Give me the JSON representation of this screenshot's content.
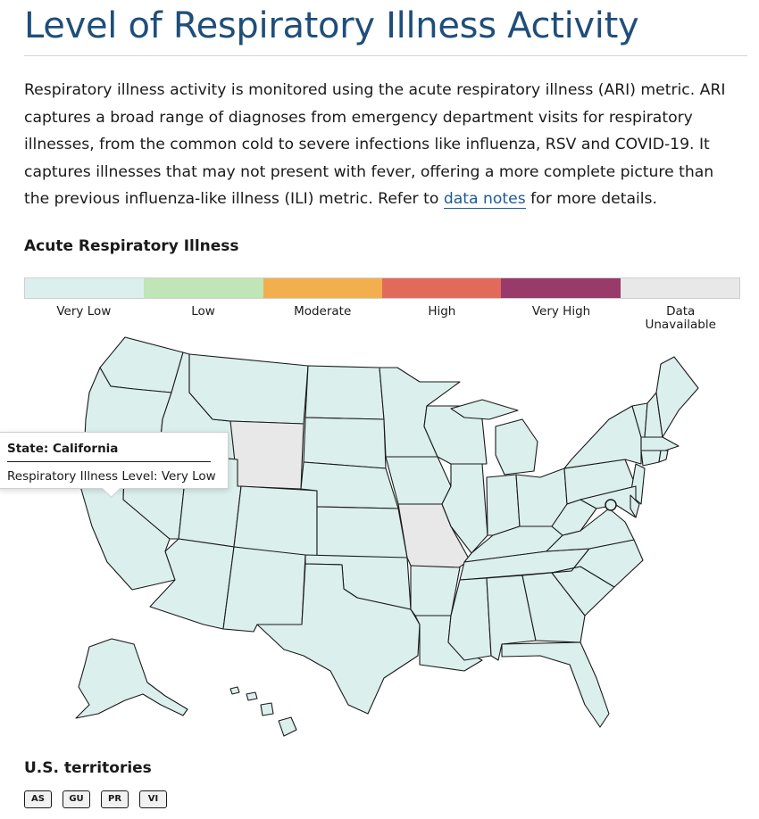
{
  "page": {
    "title": "Level of Respiratory Illness Activity",
    "intro_before_link": "Respiratory illness activity is monitored using the acute respiratory illness (ARI) metric. ARI captures a broad range of diagnoses from emergency department visits for respiratory illnesses, from the common cold to severe infections like influenza, RSV and COVID-19. It captures illnesses that may not present with fever, offering a more complete picture than the previous influenza-like illness (ILI) metric. Refer to ",
    "intro_link": "data notes",
    "intro_after_link": " for more details."
  },
  "map": {
    "section_title": "Acute Respiratory Illness",
    "legend": [
      {
        "label": "Very Low",
        "color": "#dbefec"
      },
      {
        "label": "Low",
        "color": "#c0e5b6"
      },
      {
        "label": "Moderate",
        "color": "#f1b04d"
      },
      {
        "label": "High",
        "color": "#e26a5b"
      },
      {
        "label": "Very High",
        "color": "#983a6a"
      },
      {
        "label": "Data\nUnavailable",
        "color": "#e8e8e8"
      }
    ],
    "unavailable_states": [
      "Wyoming",
      "Missouri"
    ],
    "tooltip": {
      "title": "State: California",
      "level": "Respiratory Illness Level: Very Low"
    }
  },
  "territories": {
    "title": "U.S. territories",
    "items": [
      "AS",
      "GU",
      "PR",
      "VI"
    ]
  }
}
